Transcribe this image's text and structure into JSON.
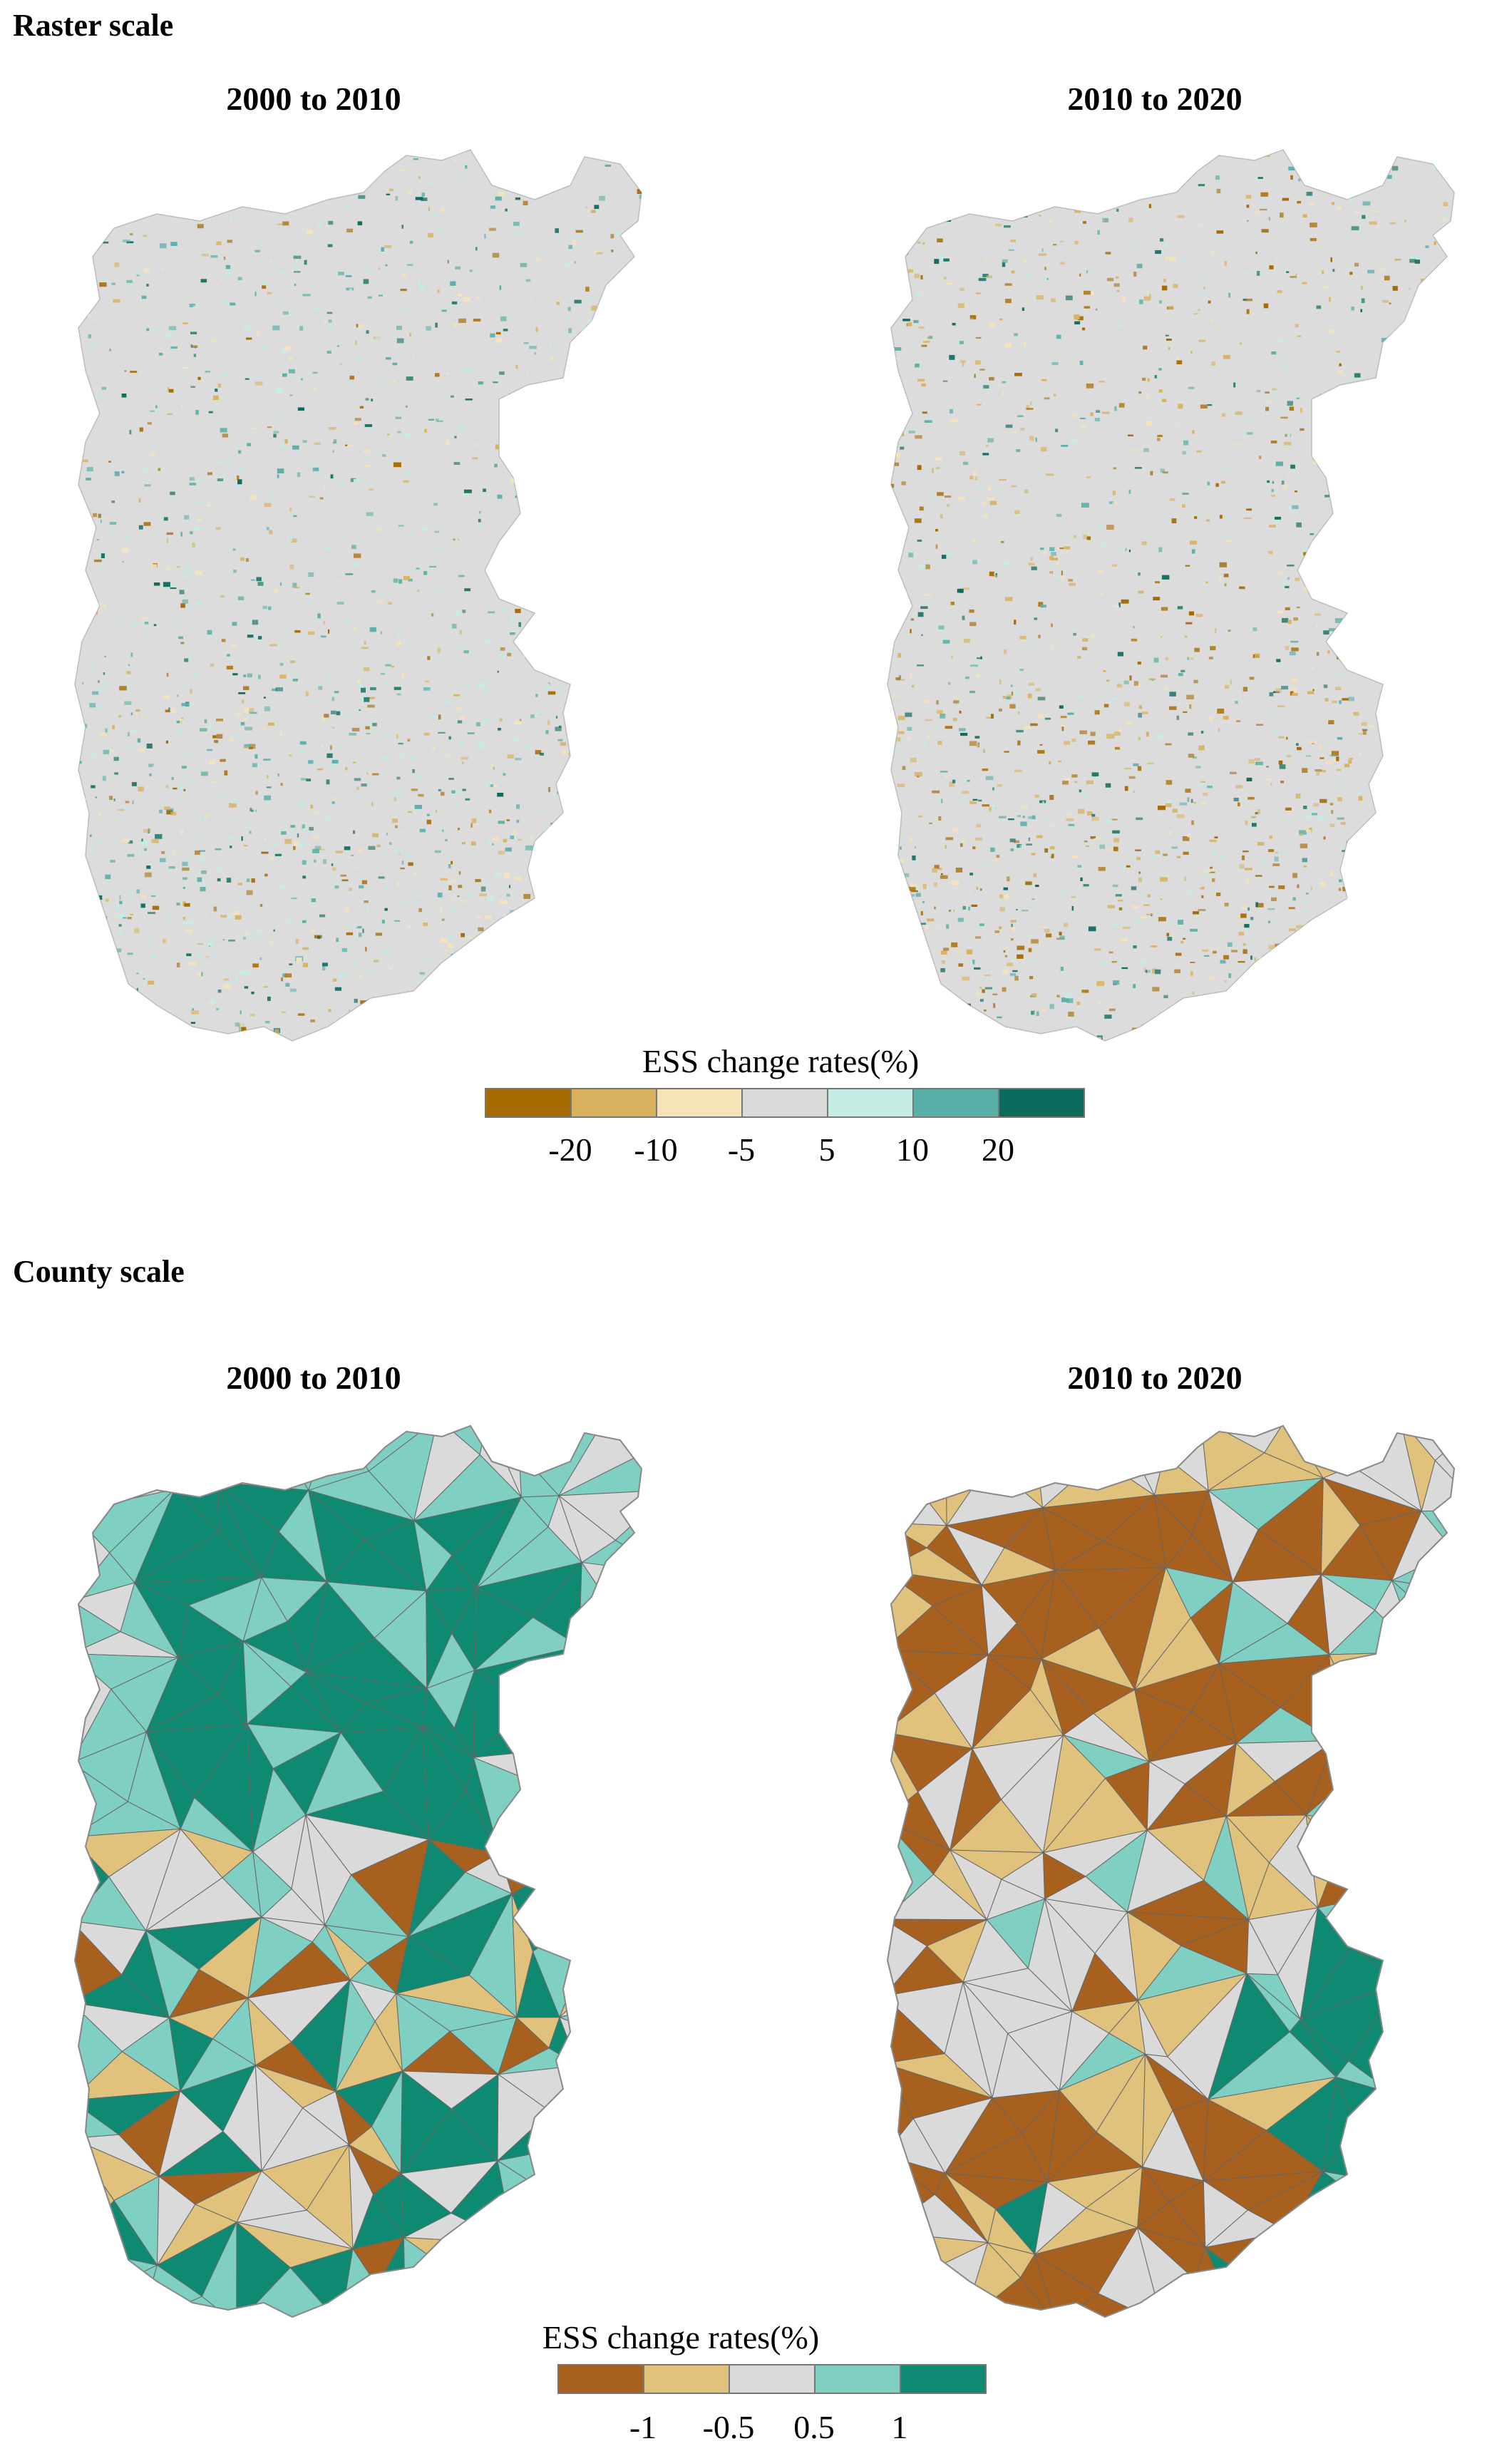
{
  "raster_section": {
    "heading": "Raster scale",
    "maps": [
      {
        "title": "2000 to 2010"
      },
      {
        "title": "2010  to 2020"
      }
    ],
    "legend": {
      "title": "ESS change rates(%)",
      "colors": [
        "#a66a00",
        "#d9b25f",
        "#f6e3b8",
        "#dadada",
        "#c3ece4",
        "#58b0a8",
        "#0b6b5d"
      ],
      "ticks": [
        "-20",
        "-10",
        "-5",
        "5",
        "10",
        "20"
      ]
    }
  },
  "county_section": {
    "heading": "County scale",
    "maps": [
      {
        "title": "2000 to 2010"
      },
      {
        "title": "2010  to 2020"
      }
    ],
    "legend": {
      "title": "ESS change rates(%)",
      "colors": [
        "#a8601e",
        "#e0c27d",
        "#dadada",
        "#7fcfc2",
        "#0f8a72"
      ],
      "ticks": [
        "-1",
        "-0.5",
        "0.5",
        "1"
      ]
    }
  }
}
